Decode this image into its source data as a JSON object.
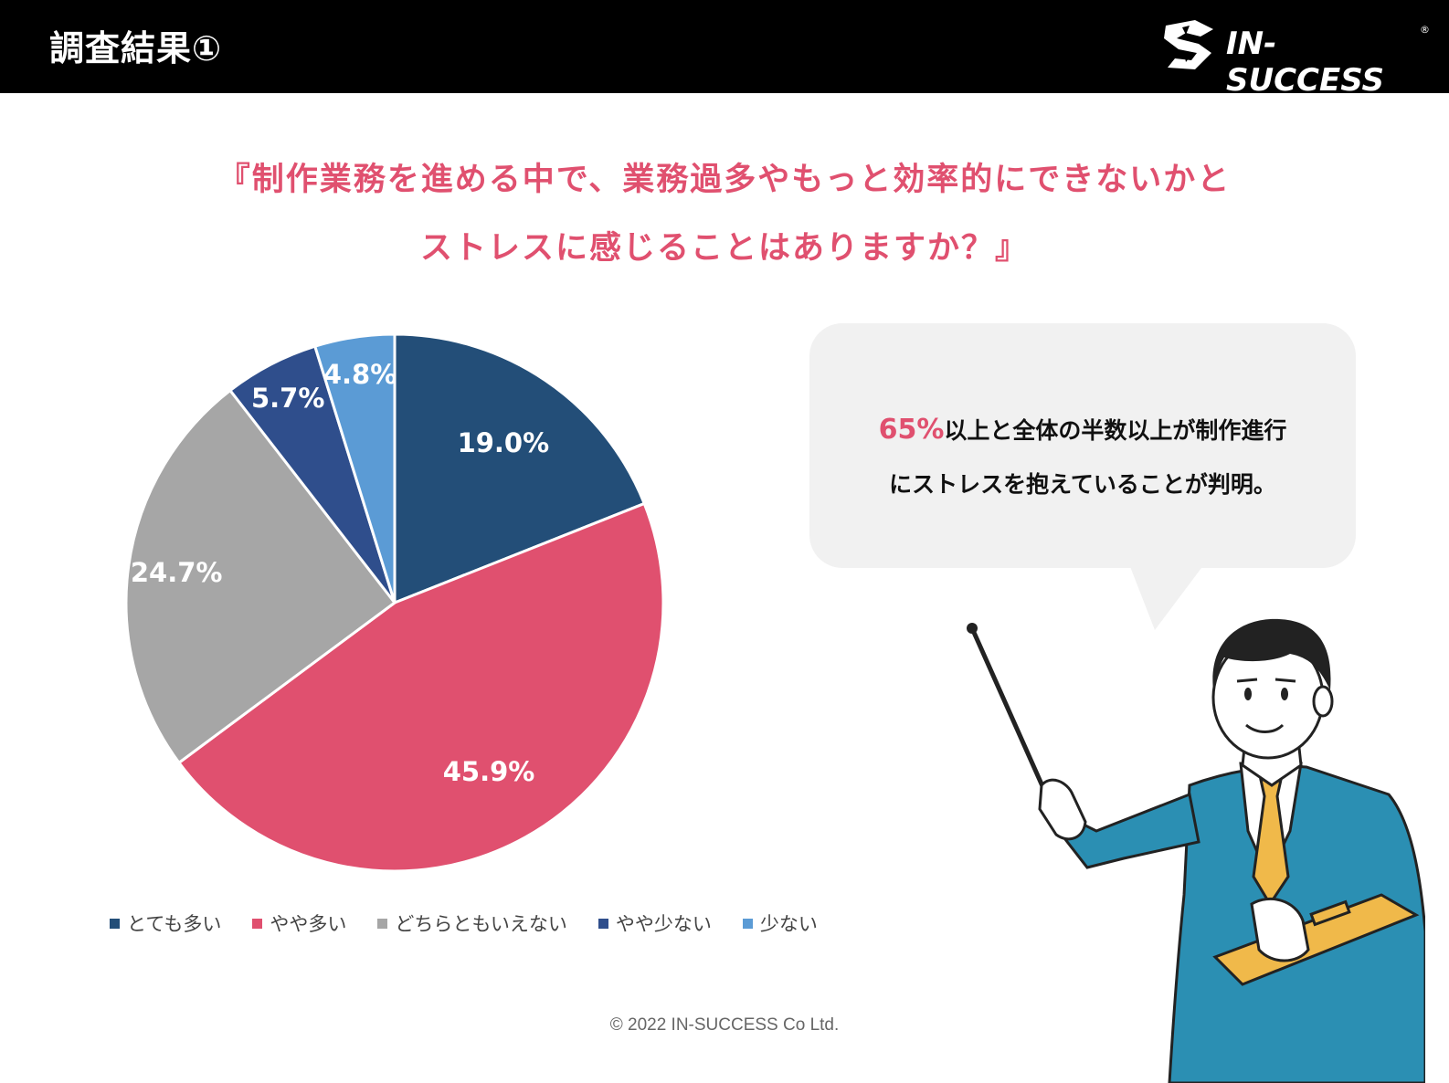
{
  "header": {
    "title": "調査結果①",
    "logo_text": "IN-SUCCESS",
    "logo_mark": "®"
  },
  "question": {
    "line1": "『制作業務を進める中で、業務過多やもっと効率的にできないかと",
    "line2": "ストレスに感じることはありますか？』"
  },
  "callout": {
    "highlight": "65%",
    "line1_rest": "以上と全体の半数以上が制作進行",
    "line2": "にストレスを抱えていることが判明。"
  },
  "footer": {
    "copyright": "© 2022 IN-SUCCESS Co Ltd."
  },
  "chart_data": {
    "type": "pie",
    "title": "",
    "categories": [
      "とても多い",
      "やや多い",
      "どちらともいえない",
      "やや少ない",
      "少ない"
    ],
    "values": [
      19.0,
      45.9,
      24.7,
      5.7,
      4.8
    ],
    "labels": [
      "19.0%",
      "45.9%",
      "24.7%",
      "5.7%",
      "4.8%"
    ],
    "colors": [
      "#234e78",
      "#e0506f",
      "#a6a6a6",
      "#2f4e8c",
      "#5b9bd5"
    ],
    "start": "12 o'clock",
    "direction": "clockwise",
    "legend": "bottom"
  },
  "colors": {
    "accent": "#e0506f",
    "header_bg": "#000000",
    "bubble_bg": "#f1f1f1"
  }
}
